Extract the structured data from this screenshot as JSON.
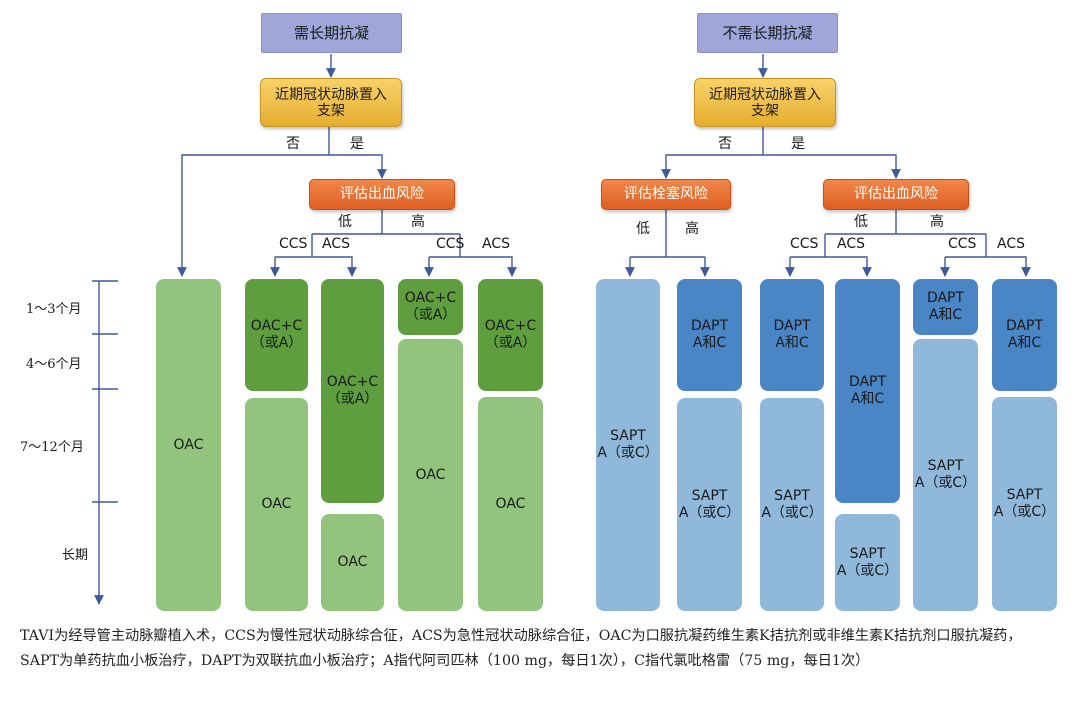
{
  "left_branch": {
    "header": "需长期抗凝",
    "stent_question": "近期冠状动脉置入\n支架",
    "no_label": "否",
    "yes_label": "是",
    "bleed_risk": "评估出血风险",
    "low_label": "低",
    "high_label": "高",
    "ccs_low": "CCS",
    "acs_low": "ACS",
    "ccs_high": "CCS",
    "acs_high": "ACS"
  },
  "right_branch": {
    "header": "不需长期抗凝",
    "stent_question": "近期冠状动脉置入\n支架",
    "no_label": "否",
    "yes_label": "是",
    "thrombo_risk": "评估栓塞风险",
    "thrombo_low": "低",
    "thrombo_high": "高",
    "bleed_risk": "评估出血风险",
    "low_label": "低",
    "high_label": "高",
    "ccs_low": "CCS",
    "acs_low": "ACS",
    "ccs_high": "CCS",
    "acs_high": "ACS"
  },
  "timeline": [
    "1～3个月",
    "4～6个月",
    "7～12个月",
    "长期"
  ],
  "columns": {
    "c1": [
      "OAC"
    ],
    "c2": [
      "OAC+C\n（或A）",
      "OAC"
    ],
    "c3": [
      "OAC+C\n（或A）",
      "OAC"
    ],
    "c4": [
      "OAC+C\n（或A）",
      "OAC"
    ],
    "c5": [
      "OAC+C\n（或A）",
      "OAC"
    ],
    "c6": [
      "SAPT\nA（或C）"
    ],
    "c7": [
      "DAPT\nA和C",
      "SAPT\nA（或C）"
    ],
    "c8": [
      "DAPT\nA和C",
      "SAPT\nA（或C）"
    ],
    "c9": [
      "DAPT\nA和C",
      "SAPT\nA（或C）"
    ],
    "c10": [
      "DAPT\nA和C",
      "SAPT\nA（或C）"
    ],
    "c11": [
      "DAPT\nA和C",
      "SAPT\nA（或C）"
    ]
  },
  "caption": "TAVI为经导管主动脉瓣植入术，CCS为慢性冠状动脉综合征，ACS为急性冠状动脉综合征，OAC为口服抗凝药维生素K拮抗剂或非维生素K拮抗剂口服抗凝药，SAPT为单药抗血小板治疗，DAPT为双联抗血小板治疗；A指代阿司匹林（100 mg，每日1次），C指代氯吡格雷（75 mg，每日1次）",
  "colors": {
    "header": "#9ea6da",
    "decision": "#f0c04a",
    "risk": "#e8722f",
    "green_light": "#93c47d",
    "green_dark": "#5f9e3f",
    "blue_light": "#90b8db",
    "blue_dark": "#4a86c5",
    "connector": "#3d5a99"
  }
}
